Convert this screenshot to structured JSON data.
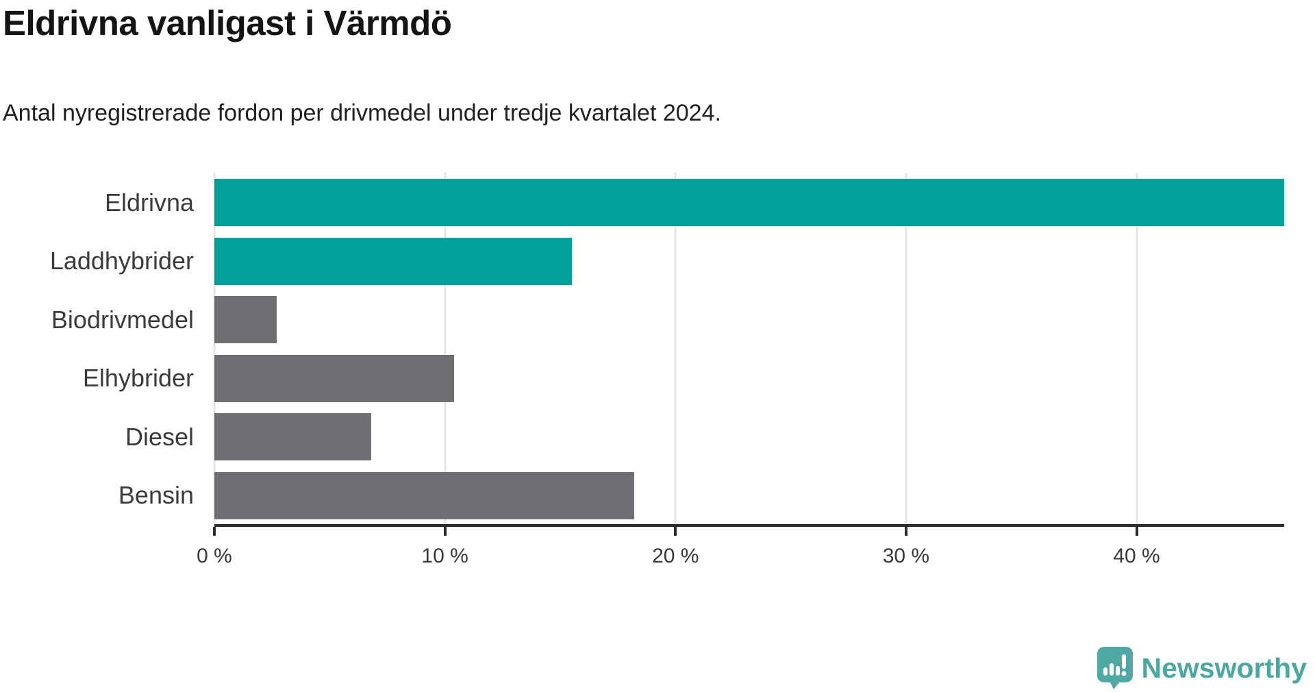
{
  "title": "Eldrivna vanligast i Värmdö",
  "subtitle": "Antal nyregistrerade fordon per drivmedel under tredje kvartalet 2024.",
  "chart_data": {
    "type": "bar",
    "orientation": "horizontal",
    "categories": [
      "Eldrivna",
      "Laddhybrider",
      "Biodrivmedel",
      "Elhybrider",
      "Diesel",
      "Bensin"
    ],
    "values": [
      46.4,
      15.5,
      2.7,
      10.4,
      6.8,
      18.2
    ],
    "unit": "%",
    "xlim": [
      0,
      46.4
    ],
    "x_ticks": [
      0,
      10,
      20,
      30,
      40
    ],
    "x_tick_labels": [
      "0 %",
      "10 %",
      "20 %",
      "30 %",
      "40 %"
    ],
    "grid": true,
    "legend": "none",
    "bar_colors": [
      "#00A09B",
      "#00A09B",
      "#6E6E73",
      "#6E6E73",
      "#6E6E73",
      "#6E6E73"
    ]
  },
  "colors": {
    "accent_teal": "#00A09B",
    "neutral_gray": "#6E6E73",
    "gridline": "#E4E4E4",
    "axis_line": "#2D2D2D",
    "title_text": "#141414",
    "label_text": "#3B3B3B",
    "logo_teal": "#4BA7A2"
  },
  "branding": {
    "logo_text": "Newsworthy",
    "logo_icon": "newsworthy-bubble-chart-icon"
  }
}
